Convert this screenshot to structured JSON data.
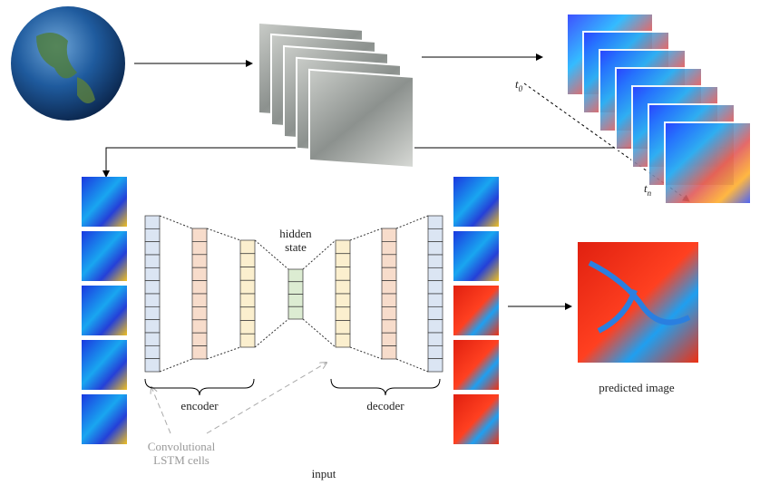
{
  "labels": {
    "t_start": {
      "base": "t",
      "sub": "0"
    },
    "t_end": {
      "base": "t",
      "sub": "n"
    },
    "hidden_state": [
      "hidden",
      "state"
    ],
    "encoder": "encoder",
    "decoder": "decoder",
    "conv_lstm": [
      "Convolutional",
      "LSTM cells"
    ],
    "predicted_image": "predicted image",
    "input": "input"
  }
}
